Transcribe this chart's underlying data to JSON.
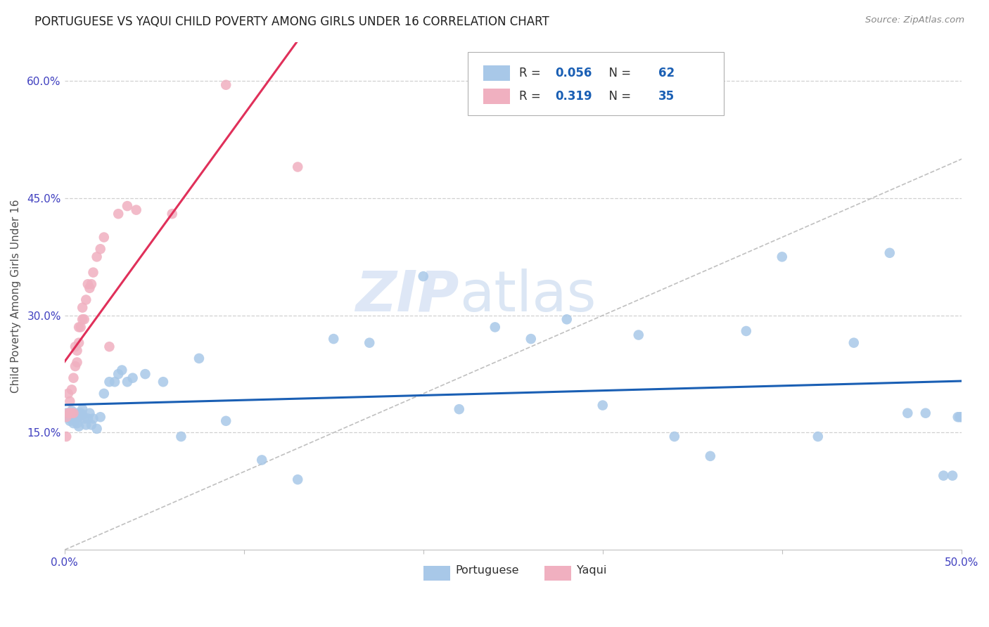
{
  "title": "PORTUGUESE VS YAQUI CHILD POVERTY AMONG GIRLS UNDER 16 CORRELATION CHART",
  "source": "Source: ZipAtlas.com",
  "ylabel": "Child Poverty Among Girls Under 16",
  "watermark": "ZIPatlas",
  "xlim": [
    0.0,
    0.5
  ],
  "ylim": [
    0.0,
    0.65
  ],
  "yticks": [
    0.15,
    0.3,
    0.45,
    0.6
  ],
  "ytick_labels": [
    "15.0%",
    "30.0%",
    "45.0%",
    "60.0%"
  ],
  "xtick_labels_ends": [
    "0.0%",
    "50.0%"
  ],
  "portuguese_R": "0.056",
  "portuguese_N": "62",
  "yaqui_R": "0.319",
  "yaqui_N": "35",
  "portuguese_color": "#a8c8e8",
  "yaqui_color": "#f0b0c0",
  "portuguese_line_color": "#1a5fb4",
  "yaqui_line_color": "#e0305a",
  "diagonal_color": "#c0c0c0",
  "grid_color": "#d0d0d0",
  "title_color": "#202020",
  "tick_color": "#4040c0",
  "legend_blue": "#1a5fb4",
  "portuguese_x": [
    0.001,
    0.002,
    0.003,
    0.003,
    0.004,
    0.004,
    0.005,
    0.005,
    0.006,
    0.006,
    0.007,
    0.007,
    0.008,
    0.008,
    0.009,
    0.01,
    0.01,
    0.011,
    0.012,
    0.013,
    0.014,
    0.015,
    0.016,
    0.018,
    0.02,
    0.022,
    0.025,
    0.028,
    0.03,
    0.032,
    0.035,
    0.038,
    0.045,
    0.055,
    0.065,
    0.075,
    0.09,
    0.11,
    0.13,
    0.15,
    0.17,
    0.2,
    0.22,
    0.24,
    0.26,
    0.28,
    0.3,
    0.32,
    0.34,
    0.36,
    0.38,
    0.4,
    0.42,
    0.44,
    0.46,
    0.47,
    0.48,
    0.49,
    0.495,
    0.498,
    0.499,
    0.5
  ],
  "portuguese_y": [
    0.175,
    0.172,
    0.168,
    0.165,
    0.17,
    0.178,
    0.172,
    0.162,
    0.168,
    0.173,
    0.175,
    0.162,
    0.158,
    0.17,
    0.175,
    0.173,
    0.18,
    0.168,
    0.16,
    0.168,
    0.175,
    0.16,
    0.168,
    0.155,
    0.17,
    0.2,
    0.215,
    0.215,
    0.225,
    0.23,
    0.215,
    0.22,
    0.225,
    0.215,
    0.145,
    0.245,
    0.165,
    0.115,
    0.09,
    0.27,
    0.265,
    0.35,
    0.18,
    0.285,
    0.27,
    0.295,
    0.185,
    0.275,
    0.145,
    0.12,
    0.28,
    0.375,
    0.145,
    0.265,
    0.38,
    0.175,
    0.175,
    0.095,
    0.095,
    0.17,
    0.17,
    0.17
  ],
  "yaqui_x": [
    0.001,
    0.001,
    0.002,
    0.002,
    0.003,
    0.003,
    0.004,
    0.004,
    0.005,
    0.005,
    0.006,
    0.006,
    0.007,
    0.007,
    0.008,
    0.008,
    0.009,
    0.01,
    0.01,
    0.011,
    0.012,
    0.013,
    0.014,
    0.015,
    0.016,
    0.018,
    0.02,
    0.022,
    0.025,
    0.03,
    0.035,
    0.04,
    0.06,
    0.09,
    0.13
  ],
  "yaqui_y": [
    0.145,
    0.17,
    0.175,
    0.2,
    0.175,
    0.19,
    0.175,
    0.205,
    0.175,
    0.22,
    0.235,
    0.26,
    0.24,
    0.255,
    0.265,
    0.285,
    0.285,
    0.295,
    0.31,
    0.295,
    0.32,
    0.34,
    0.335,
    0.34,
    0.355,
    0.375,
    0.385,
    0.4,
    0.26,
    0.43,
    0.44,
    0.435,
    0.43,
    0.595,
    0.49
  ]
}
